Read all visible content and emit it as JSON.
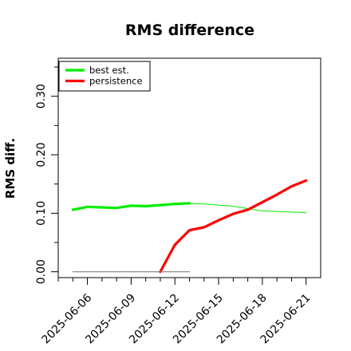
{
  "chart_data": {
    "type": "line",
    "title": "RMS difference",
    "ylabel": "RMS diff.",
    "xlabel": "",
    "x": [
      "2025-06-05",
      "2025-06-06",
      "2025-06-07",
      "2025-06-08",
      "2025-06-09",
      "2025-06-10",
      "2025-06-11",
      "2025-06-12",
      "2025-06-13",
      "2025-06-14",
      "2025-06-15",
      "2025-06-16",
      "2025-06-17",
      "2025-06-18",
      "2025-06-19",
      "2025-06-20",
      "2025-06-21"
    ],
    "xticks": [
      "2025-06-06",
      "2025-06-09",
      "2025-06-12",
      "2025-06-15",
      "2025-06-18",
      "2025-06-21"
    ],
    "xlim": [
      "2025-06-04",
      "2025-06-22"
    ],
    "ylim": [
      -0.01,
      0.365
    ],
    "yticks": [
      0.0,
      0.1,
      0.2,
      0.3
    ],
    "ytick_labels": [
      "0.00",
      "0.10",
      "0.20",
      "0.30"
    ],
    "grid": false,
    "legend_position": "top-left",
    "series": [
      {
        "name": "best est.",
        "color": "#00ee00",
        "segments": [
          {
            "style": "thick",
            "x": [
              "2025-06-05",
              "2025-06-06",
              "2025-06-07",
              "2025-06-08",
              "2025-06-09",
              "2025-06-10",
              "2025-06-11",
              "2025-06-12",
              "2025-06-13"
            ],
            "values": [
              0.106,
              0.111,
              0.11,
              0.109,
              0.113,
              0.112,
              0.114,
              0.116,
              0.117
            ]
          },
          {
            "style": "thin",
            "x": [
              "2025-06-13",
              "2025-06-14",
              "2025-06-15",
              "2025-06-16",
              "2025-06-17",
              "2025-06-18",
              "2025-06-19",
              "2025-06-20",
              "2025-06-21"
            ],
            "values": [
              0.117,
              0.116,
              0.114,
              0.112,
              0.108,
              0.104,
              0.103,
              0.102,
              0.101
            ]
          }
        ]
      },
      {
        "name": "persistence",
        "color": "#ff0000",
        "segments": [
          {
            "style": "thick",
            "x": [
              "2025-06-11",
              "2025-06-12",
              "2025-06-13",
              "2025-06-14",
              "2025-06-15",
              "2025-06-16",
              "2025-06-17",
              "2025-06-18",
              "2025-06-19",
              "2025-06-20",
              "2025-06-21"
            ],
            "values": [
              0.0,
              0.046,
              0.071,
              0.076,
              0.088,
              0.099,
              0.106,
              0.119,
              0.132,
              0.146,
              0.156
            ]
          }
        ]
      },
      {
        "color": "#808080",
        "segments": [
          {
            "style": "hairline",
            "x": [
              "2025-06-05",
              "2025-06-13"
            ],
            "values": [
              0.0,
              0.0
            ]
          }
        ]
      }
    ]
  }
}
